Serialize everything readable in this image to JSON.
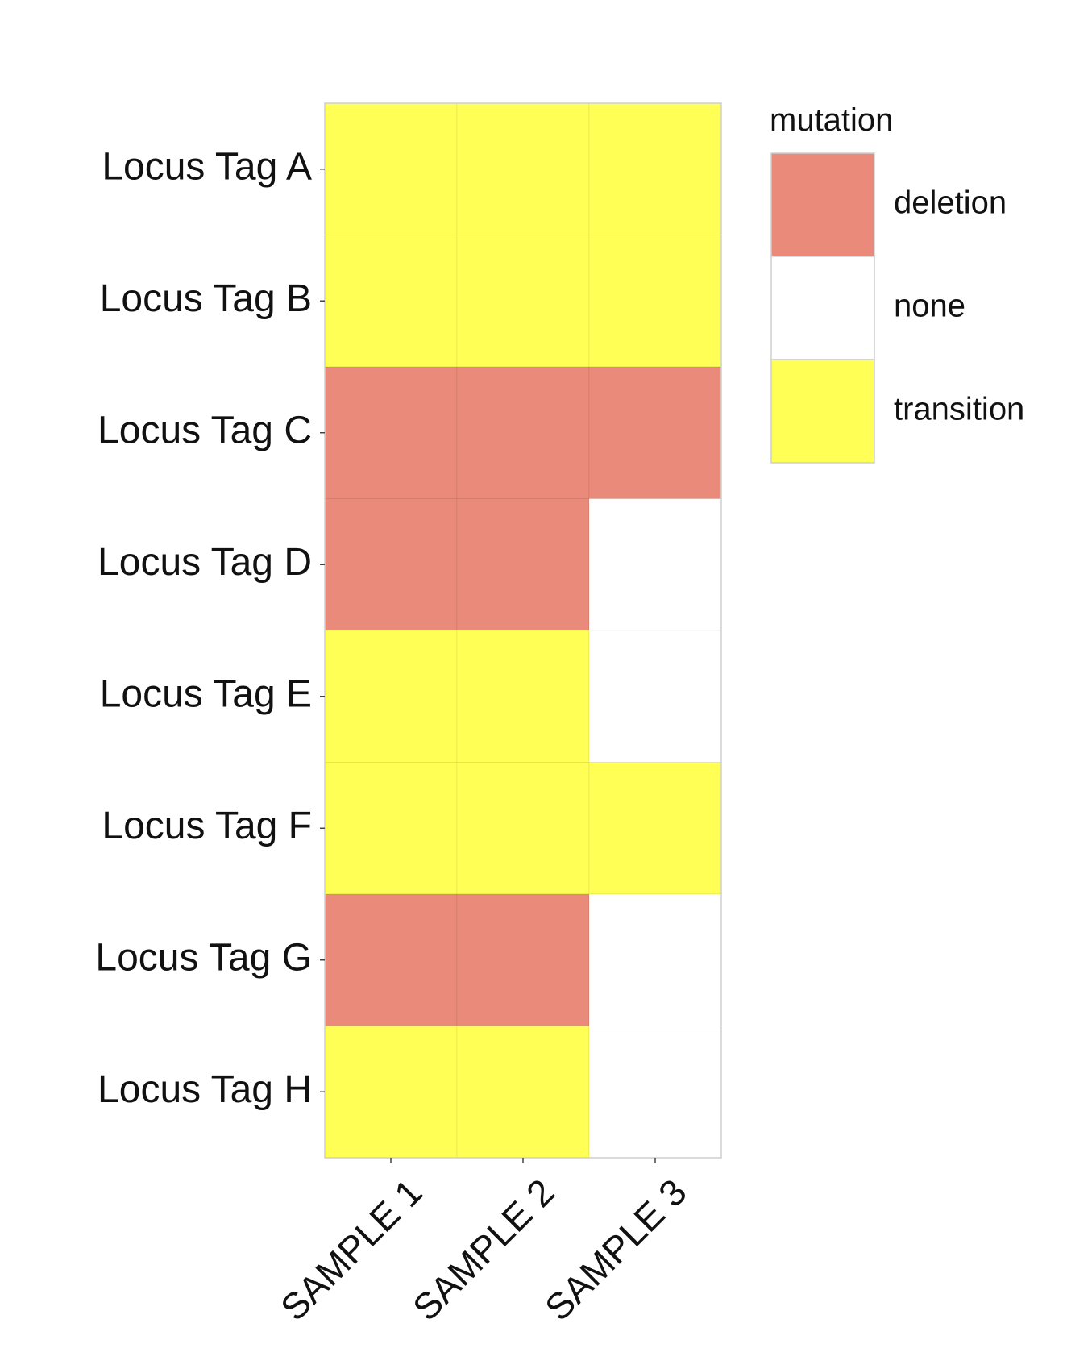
{
  "chart_data": {
    "type": "heatmap",
    "rows": [
      "Locus Tag A",
      "Locus Tag B",
      "Locus Tag C",
      "Locus Tag D",
      "Locus Tag E",
      "Locus Tag F",
      "Locus Tag G",
      "Locus Tag H"
    ],
    "columns": [
      "SAMPLE 1",
      "SAMPLE 2",
      "SAMPLE 3"
    ],
    "values": [
      [
        "transition",
        "transition",
        "transition"
      ],
      [
        "transition",
        "transition",
        "transition"
      ],
      [
        "deletion",
        "deletion",
        "deletion"
      ],
      [
        "deletion",
        "deletion",
        "none"
      ],
      [
        "transition",
        "transition",
        "none"
      ],
      [
        "transition",
        "transition",
        "transition"
      ],
      [
        "deletion",
        "deletion",
        "none"
      ],
      [
        "transition",
        "transition",
        "none"
      ]
    ],
    "legend": {
      "title": "mutation",
      "position": "right",
      "entries": [
        {
          "label": "deletion",
          "color": "#E98A7A"
        },
        {
          "label": "none",
          "color": "#FFFFFF"
        },
        {
          "label": "transition",
          "color": "#FFFF55"
        }
      ]
    },
    "grid": false
  }
}
